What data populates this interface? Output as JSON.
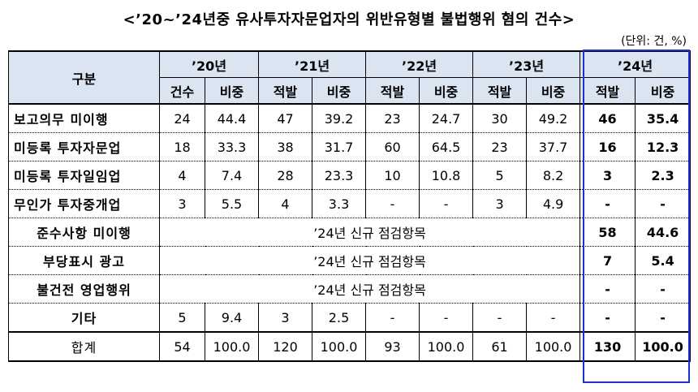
{
  "title": "<’20~’24년중 유사투자자문업자의 위반유형별 불법행위 혐의 건수>",
  "unit": "(단위: 건, %)",
  "header": {
    "category": "구분",
    "years": [
      "’20년",
      "’21년",
      "’22년",
      "’23년",
      "’24년"
    ],
    "sub": [
      "건수",
      "비중",
      "적발",
      "비중",
      "적발",
      "비중",
      "적발",
      "비중",
      "적발",
      "비중"
    ]
  },
  "rows": [
    {
      "label": "보고의무 미이행",
      "vals": [
        "24",
        "44.4",
        "47",
        "39.2",
        "23",
        "24.7",
        "30",
        "49.2"
      ],
      "y24": [
        "46",
        "35.4"
      ]
    },
    {
      "label": "미등록 투자자문업",
      "vals": [
        "18",
        "33.3",
        "38",
        "31.7",
        "60",
        "64.5",
        "23",
        "37.7"
      ],
      "y24": [
        "16",
        "12.3"
      ]
    },
    {
      "label": "미등록 투자일임업",
      "vals": [
        "4",
        "7.4",
        "28",
        "23.3",
        "10",
        "10.8",
        "5",
        "8.2"
      ],
      "y24": [
        "3",
        "2.3"
      ]
    },
    {
      "label": "무인가 투자중개업",
      "vals": [
        "3",
        "5.5",
        "4",
        "3.3",
        "-",
        "-",
        "3",
        "4.9"
      ],
      "y24": [
        "-",
        "-"
      ]
    }
  ],
  "new_rows": [
    {
      "label": "준수사항 미이행",
      "note": "’24년 신규 점검항목",
      "y24": [
        "58",
        "44.6"
      ]
    },
    {
      "label": "부당표시 광고",
      "note": "’24년 신규 점검항목",
      "y24": [
        "7",
        "5.4"
      ]
    },
    {
      "label": "불건전 영업행위",
      "note": "’24년 신규 점검항목",
      "y24": [
        "-",
        "-"
      ]
    }
  ],
  "other": {
    "label": "기타",
    "vals": [
      "5",
      "9.4",
      "3",
      "2.5",
      "-",
      "-",
      "-",
      "-"
    ],
    "y24": [
      "-",
      "-"
    ]
  },
  "total": {
    "label": "합계",
    "vals": [
      "54",
      "100.0",
      "120",
      "100.0",
      "93",
      "100.0",
      "61",
      "100.0"
    ],
    "y24": [
      "130",
      "100.0"
    ]
  }
}
